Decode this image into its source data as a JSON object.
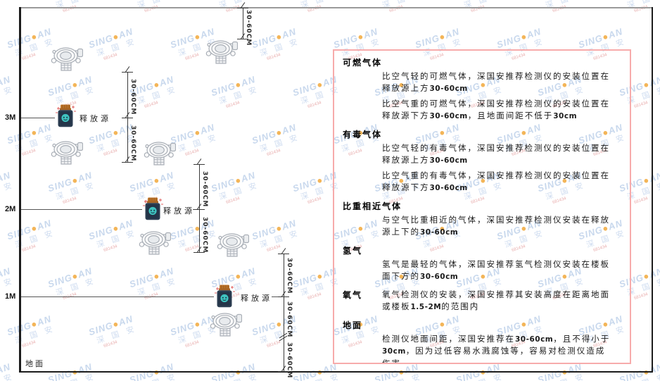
{
  "watermark": {
    "brand_prefix": "SING",
    "brand_dot": "●",
    "brand_suffix": "AN",
    "cjk_text": "深 国 安",
    "code_text": "681434",
    "brand_color": "#bfd2ea",
    "dot_color": "#f2a93b",
    "cjk_color": "#c7d7ee",
    "code_color": "#e49c9c"
  },
  "diagram": {
    "height_labels": [
      "3M",
      "2M",
      "1M"
    ],
    "release_source_label": "释放源",
    "dimension_label": "30-60CM",
    "ground_label": "地面",
    "colors": {
      "wall": "#1c1c1c",
      "level_line": "#555555",
      "dimension": "#3a3a3a",
      "detector_stroke": "#a8aeb6",
      "detector_fill": "#fafafa",
      "source_body": "#2d3e52",
      "source_body_inner": "#243448",
      "source_cap": "#c0762c",
      "source_cap_dark": "#a86524",
      "source_emblem": "#3fc3c0",
      "sparkle": "#e06060"
    }
  },
  "panel": {
    "border_color": "#f7abab",
    "sections": [
      {
        "heading": "可燃气体",
        "inline": false,
        "paragraphs": [
          "比空气轻的可燃气体，深国安推荐检测仪的安装位置在释放源上方30-60cm",
          "比空气重的可燃气体，深国安推荐检测仪的安装位置在释放源下方30-60cm，且地面间距不低于30cm"
        ]
      },
      {
        "heading": "有毒气体",
        "inline": false,
        "paragraphs": [
          "比空气轻的有毒气体，深国安推荐检测仪的安装位置在释放源上方30-60cm",
          "比空气重的有毒气体，深国安推荐检测仪的安装位置在释放源下方30-60cm"
        ]
      },
      {
        "heading": "比重相近气体",
        "inline": false,
        "paragraphs": [
          "与空气比重相近的气体，深国安推荐检测仪安装在释放源上下的30-60cm"
        ]
      },
      {
        "heading": "氢气",
        "inline": false,
        "paragraphs": [
          "氢气是最轻的气体，深国安推荐氢气检测仪安装在楼板面下方的30-60cm"
        ]
      },
      {
        "heading": "氧气",
        "inline": true,
        "paragraphs": [
          "氧气检测仪的安装，深国安推荐其安装高度在距离地面或楼板1.5-2M的范围内"
        ]
      },
      {
        "heading": "地面",
        "inline": false,
        "paragraphs": [
          "检测仪地面间距，深国安推荐在30-60cm，且不得小于30cm，因为过低容易水溅腐蚀等，容易对检测仪造成伤害"
        ]
      }
    ]
  }
}
